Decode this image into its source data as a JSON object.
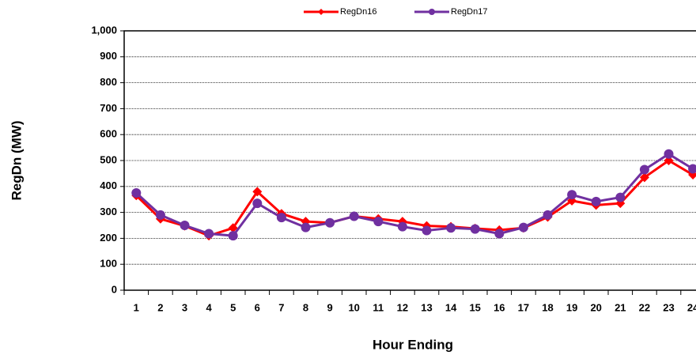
{
  "chart_data": {
    "type": "line",
    "x_label": "Hour Ending",
    "y_label": "RegDn (MW)",
    "categories": [
      "1",
      "2",
      "3",
      "4",
      "5",
      "6",
      "7",
      "8",
      "9",
      "10",
      "11",
      "12",
      "13",
      "14",
      "15",
      "16",
      "17",
      "18",
      "19",
      "20",
      "21",
      "22",
      "23",
      "24"
    ],
    "series": [
      {
        "name": "RegDn16",
        "color": "#ff0000",
        "marker": "diamond",
        "values": [
          365,
          275,
          248,
          210,
          240,
          380,
          295,
          265,
          260,
          285,
          275,
          265,
          248,
          245,
          238,
          232,
          240,
          282,
          345,
          328,
          335,
          435,
          500,
          445
        ]
      },
      {
        "name": "RegDn17",
        "color": "#7030a0",
        "marker": "circle",
        "values": [
          375,
          290,
          250,
          218,
          210,
          335,
          280,
          242,
          260,
          285,
          265,
          245,
          230,
          240,
          236,
          218,
          242,
          290,
          368,
          342,
          358,
          465,
          525,
          468
        ]
      }
    ],
    "ylim": [
      0,
      1000
    ],
    "yticks": [
      0,
      100,
      200,
      300,
      400,
      500,
      600,
      700,
      800,
      900,
      {
        "value": 1000,
        "label": "1,000"
      }
    ],
    "grid": true,
    "legend": "top"
  }
}
